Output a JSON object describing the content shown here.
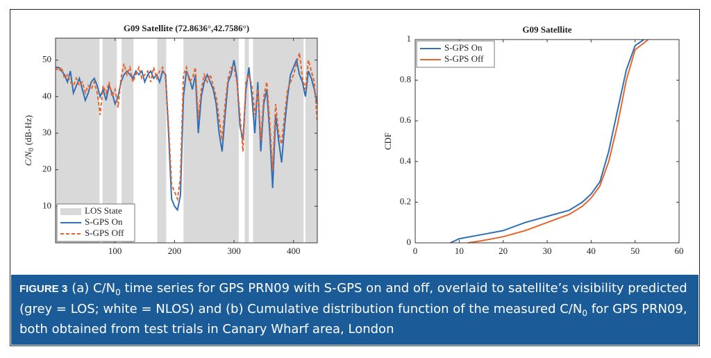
{
  "chart_data": [
    {
      "type": "line",
      "title": "G09 Satellite (72.8636°,42.7586°)",
      "ylabel": {
        "main": "C/N",
        "subscript": "0",
        "unit": "(dB-Hz)"
      },
      "xlim": [
        0,
        440
      ],
      "xticks": [
        100,
        200,
        300,
        400
      ],
      "ylim": [
        0,
        56
      ],
      "yticks": [
        10,
        20,
        30,
        40,
        50
      ],
      "legend": "lower-left",
      "shading": {
        "name": "LOS State",
        "color": "#d9d9d9",
        "intervals": [
          [
            0,
            74
          ],
          [
            79,
            103
          ],
          [
            111,
            131
          ],
          [
            171,
            186
          ],
          [
            215,
            308
          ],
          [
            318,
            325
          ],
          [
            332,
            417
          ],
          [
            420,
            440
          ]
        ]
      },
      "x": [
        0,
        5,
        10,
        15,
        20,
        25,
        30,
        35,
        40,
        45,
        50,
        55,
        60,
        65,
        70,
        75,
        80,
        85,
        90,
        95,
        100,
        105,
        110,
        115,
        120,
        125,
        130,
        135,
        140,
        145,
        150,
        155,
        160,
        165,
        170,
        175,
        180,
        185,
        190,
        195,
        200,
        205,
        210,
        215,
        220,
        225,
        230,
        235,
        240,
        245,
        250,
        255,
        260,
        265,
        270,
        275,
        280,
        285,
        290,
        295,
        300,
        305,
        310,
        315,
        320,
        325,
        330,
        335,
        340,
        345,
        350,
        355,
        360,
        365,
        370,
        375,
        380,
        385,
        390,
        395,
        400,
        405,
        410,
        415,
        420,
        425,
        430,
        435,
        440
      ],
      "series": [
        {
          "name": "S-GPS On",
          "color": "#2f6fb5",
          "dash": false,
          "values": [
            48,
            48,
            47,
            46,
            44,
            47,
            41,
            43,
            45,
            42,
            39,
            41,
            44,
            45,
            43,
            40,
            42,
            39,
            43,
            41,
            38,
            40,
            44,
            46,
            47,
            46,
            45,
            47,
            46,
            47,
            44,
            46,
            47,
            45,
            46,
            44,
            47,
            46,
            30,
            12,
            10,
            9,
            13,
            40,
            47,
            45,
            42,
            46,
            30,
            40,
            44,
            46,
            44,
            42,
            38,
            30,
            25,
            35,
            44,
            46,
            50,
            45,
            32,
            28,
            42,
            48,
            40,
            30,
            44,
            25,
            38,
            42,
            30,
            15,
            35,
            28,
            22,
            32,
            40,
            46,
            48,
            50,
            46,
            44,
            40,
            47,
            45,
            42,
            38
          ]
        },
        {
          "name": "S-GPS Off",
          "color": "#e8642c",
          "dash": true,
          "values": [
            48,
            47,
            48,
            45,
            46,
            44,
            43,
            45,
            43,
            44,
            41,
            43,
            42,
            44,
            41,
            35,
            43,
            41,
            44,
            40,
            42,
            37,
            45,
            49,
            46,
            48,
            44,
            46,
            48,
            45,
            46,
            47,
            44,
            48,
            45,
            47,
            48,
            45,
            32,
            16,
            14,
            12,
            18,
            46,
            48,
            44,
            45,
            48,
            34,
            42,
            46,
            44,
            46,
            43,
            40,
            34,
            28,
            38,
            45,
            48,
            48,
            44,
            35,
            25,
            44,
            46,
            43,
            35,
            42,
            28,
            40,
            44,
            33,
            20,
            38,
            30,
            27,
            35,
            42,
            44,
            46,
            49,
            52,
            45,
            42,
            50,
            47,
            44,
            33
          ]
        }
      ]
    },
    {
      "type": "line",
      "title": "G09 Satellite",
      "ylabel": "CDF",
      "xlim": [
        0,
        60
      ],
      "xticks": [
        0,
        10,
        20,
        30,
        40,
        50,
        60
      ],
      "ylim": [
        0,
        1
      ],
      "yticks": [
        0,
        0.2,
        0.4,
        0.6,
        0.8,
        1
      ],
      "legend": "upper-left",
      "series": [
        {
          "name": "S-GPS On",
          "color": "#2f6fb5",
          "dash": false,
          "x": [
            8,
            10,
            15,
            20,
            25,
            30,
            35,
            38,
            40,
            42,
            44,
            46,
            48,
            50,
            52
          ],
          "values": [
            0,
            0.02,
            0.04,
            0.06,
            0.1,
            0.13,
            0.16,
            0.2,
            0.24,
            0.3,
            0.45,
            0.65,
            0.85,
            0.97,
            1
          ]
        },
        {
          "name": "S-GPS Off",
          "color": "#e8642c",
          "dash": false,
          "x": [
            12,
            15,
            20,
            25,
            30,
            35,
            38,
            40,
            42,
            44,
            46,
            48,
            50,
            53
          ],
          "values": [
            0,
            0.01,
            0.03,
            0.06,
            0.1,
            0.14,
            0.18,
            0.22,
            0.28,
            0.4,
            0.58,
            0.8,
            0.95,
            1
          ]
        }
      ]
    }
  ],
  "caption": {
    "label": "FIGURE 3",
    "segments": [
      {
        "text": "(a) C/N"
      },
      {
        "text": "0",
        "subscript": true
      },
      {
        "text": " time series for GPS PRN09 with S-GPS on and off, overlaid to satellite’s visibility predicted (grey = LOS; white = NLOS) and (b) Cumulative distribution function of the measured C/N"
      },
      {
        "text": "0",
        "subscript": true
      },
      {
        "text": " for GPS PRN09, both obtained from test trials in Canary Wharf area, London"
      }
    ]
  }
}
